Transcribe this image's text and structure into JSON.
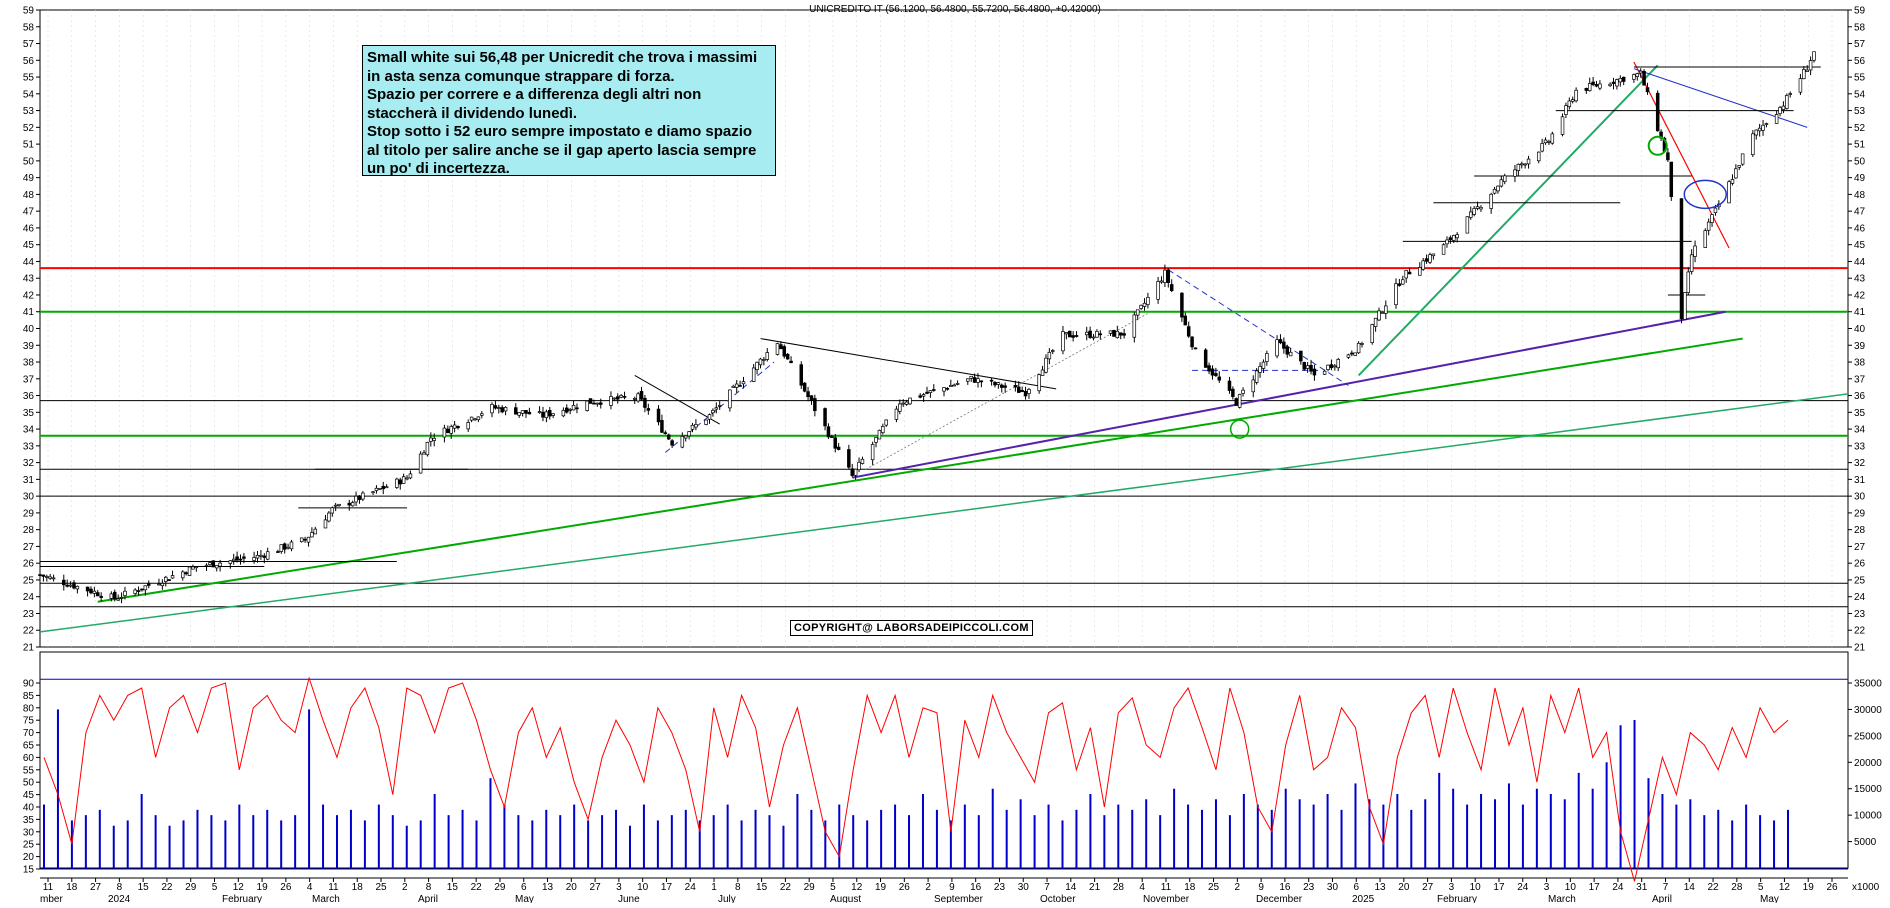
{
  "chart_title": "UNICREDITO IT (56.1200, 56.4800, 55.7200, 56.4800, +0.42000)",
  "annotation_lines": [
    "Small white sui 56,48 per Unicredit che trova i massimi",
    "in asta senza comunque strappare di forza.",
    "Spazio per correre e a differenza degli altri non",
    "staccherà il dividendo lunedì.",
    "Stop sotto i 52 euro sempre impostato e diamo spazio",
    "al titolo per salire anche se il gap aperto lascia sempre",
    "un po' di incertezza."
  ],
  "copyright": "COPYRIGHT@ LABORSADEIPICCOLI.COM",
  "colors": {
    "price": "#000000",
    "oscillator": "#ff0000",
    "volume": "#0000cc",
    "trend_green": "#00aa00",
    "trend_teal": "#22aa66",
    "trend_purple": "#5522aa",
    "resistance_red": "#ff0000",
    "annotation_bg": "#a6ecf0"
  },
  "chart_data": [
    {
      "type": "candlestick",
      "title": "UNICREDITO IT (56.1200, 56.4800, 55.7200, 56.4800, +0.42000)",
      "ylim": [
        21,
        59
      ],
      "y_ticks": [
        21,
        22,
        23,
        24,
        25,
        26,
        27,
        28,
        29,
        30,
        31,
        32,
        33,
        34,
        35,
        36,
        37,
        38,
        39,
        40,
        41,
        42,
        43,
        44,
        45,
        46,
        47,
        48,
        49,
        50,
        51,
        52,
        53,
        54,
        55,
        56,
        57,
        58,
        59
      ],
      "y_tick_labels": [
        "21",
        "22",
        "23",
        "24",
        "25",
        "26",
        "27",
        "28",
        "29",
        "30",
        "31",
        "32",
        "33",
        "34",
        "35",
        "36",
        "37",
        "38",
        "39",
        "40",
        "41",
        "42",
        "43",
        "44",
        "45",
        "46",
        "47",
        "48",
        "49",
        "50",
        "51",
        "52",
        "53",
        "54",
        "55",
        "56",
        "57",
        "58",
        "59"
      ],
      "x_day_labels": [
        "11",
        "18",
        "27",
        "8",
        "15",
        "22",
        "29",
        "5",
        "12",
        "19",
        "26",
        "4",
        "11",
        "18",
        "25",
        "2",
        "8",
        "15",
        "22",
        "29",
        "6",
        "13",
        "20",
        "27",
        "3",
        "10",
        "17",
        "24",
        "1",
        "8",
        "15",
        "22",
        "29",
        "5",
        "12",
        "19",
        "26",
        "2",
        "9",
        "16",
        "23",
        "30",
        "7",
        "14",
        "21",
        "28",
        "4",
        "11",
        "18",
        "25",
        "2",
        "9",
        "16",
        "23",
        "30",
        "6",
        "13",
        "20",
        "27",
        "3",
        "10",
        "17",
        "24",
        "3",
        "10",
        "17",
        "24",
        "31",
        "7",
        "14",
        "22",
        "28",
        "5",
        "12",
        "19",
        "26"
      ],
      "x_month_labels": [
        "mber",
        "2024",
        "February",
        "March",
        "April",
        "May",
        "June",
        "July",
        "August",
        "September",
        "October",
        "November",
        "December",
        "2025",
        "February",
        "March",
        "April",
        "May"
      ],
      "x_range": [
        "2023-12-11",
        "2025-05-26"
      ],
      "price_series": [
        [
          "2023-12-11",
          25.3
        ],
        [
          "2024-01-02",
          23.9
        ],
        [
          "2024-01-26",
          25.8
        ],
        [
          "2024-02-13",
          26.4
        ],
        [
          "2024-02-27",
          27.4
        ],
        [
          "2024-03-06",
          29.2
        ],
        [
          "2024-03-28",
          31.1
        ],
        [
          "2024-04-04",
          33.5
        ],
        [
          "2024-04-22",
          35.3
        ],
        [
          "2024-05-07",
          34.8
        ],
        [
          "2024-05-20",
          35.6
        ],
        [
          "2024-06-04",
          35.9
        ],
        [
          "2024-06-14",
          33.2
        ],
        [
          "2024-06-25",
          34.8
        ],
        [
          "2024-07-15",
          39.2
        ],
        [
          "2024-08-06",
          31.2
        ],
        [
          "2024-08-20",
          35.6
        ],
        [
          "2024-09-10",
          37.0
        ],
        [
          "2024-09-26",
          36.2
        ],
        [
          "2024-10-07",
          39.6
        ],
        [
          "2024-10-25",
          39.7
        ],
        [
          "2024-11-06",
          43.3
        ],
        [
          "2024-11-15",
          38.6
        ],
        [
          "2024-11-27",
          35.6
        ],
        [
          "2024-12-09",
          39.2
        ],
        [
          "2024-12-20",
          37.2
        ],
        [
          "2025-01-02",
          38.9
        ],
        [
          "2025-01-15",
          43.1
        ],
        [
          "2025-01-27",
          44.9
        ],
        [
          "2025-02-13",
          48.8
        ],
        [
          "2025-02-27",
          51.2
        ],
        [
          "2025-03-07",
          54.2
        ],
        [
          "2025-03-26",
          55.2
        ],
        [
          "2025-04-03",
          50.0
        ],
        [
          "2025-04-07",
          40.7
        ],
        [
          "2025-04-10",
          44.4
        ],
        [
          "2025-04-17",
          47.0
        ],
        [
          "2025-04-28",
          51.5
        ],
        [
          "2025-05-07",
          53.4
        ],
        [
          "2025-05-14",
          55.6
        ],
        [
          "2025-05-16",
          56.48
        ]
      ],
      "horizontal_levels": [
        {
          "value": 41.0,
          "color": "#00aa00"
        },
        {
          "value": 33.6,
          "color": "#00aa00"
        },
        {
          "value": 43.6,
          "color": "#ff0000"
        },
        {
          "value": 35.7,
          "color": "#000000"
        },
        {
          "value": 31.6,
          "color": "#000000"
        },
        {
          "value": 30.0,
          "color": "#000000"
        },
        {
          "value": 24.8,
          "color": "#000000"
        },
        {
          "value": 23.4,
          "color": "#000000"
        }
      ]
    },
    {
      "type": "bar+line",
      "y_ticks": [
        15,
        20,
        25,
        30,
        35,
        40,
        45,
        50,
        55,
        60,
        65,
        70,
        75,
        80,
        85,
        90
      ],
      "y_tick_labels": [
        "15",
        "20",
        "25",
        "30",
        "35",
        "40",
        "45",
        "50",
        "55",
        "60",
        "65",
        "70",
        "75",
        "80",
        "85",
        "90"
      ],
      "y2_ticks": [
        5000,
        10000,
        15000,
        20000,
        25000,
        30000,
        35000
      ],
      "y2_tick_labels": [
        "5000",
        "10000",
        "15000",
        "20000",
        "25000",
        "30000",
        "35000"
      ],
      "y2_unit": "x1000",
      "oscillator_levels": [
        91.5,
        15
      ],
      "oscillator_series": [
        60,
        45,
        25,
        70,
        85,
        75,
        85,
        88,
        60,
        80,
        85,
        70,
        88,
        90,
        55,
        80,
        85,
        75,
        70,
        92,
        75,
        60,
        80,
        88,
        72,
        45,
        88,
        85,
        70,
        88,
        90,
        75,
        55,
        40,
        70,
        80,
        60,
        72,
        50,
        35,
        60,
        75,
        65,
        50,
        80,
        70,
        55,
        30,
        80,
        60,
        85,
        72,
        40,
        65,
        80,
        55,
        30,
        20,
        55,
        85,
        70,
        85,
        60,
        80,
        78,
        30,
        75,
        60,
        85,
        70,
        60,
        50,
        78,
        82,
        55,
        72,
        40,
        78,
        84,
        65,
        60,
        80,
        88,
        72,
        55,
        88,
        70,
        40,
        30,
        65,
        85,
        55,
        60,
        80,
        72,
        40,
        25,
        60,
        78,
        85,
        60,
        88,
        70,
        55,
        88,
        65,
        80,
        50,
        85,
        70,
        88,
        60,
        70,
        30,
        10,
        35,
        60,
        45,
        70,
        65,
        55,
        72,
        60,
        80,
        70,
        75
      ],
      "volume_series": [
        12,
        30,
        9,
        10,
        11,
        8,
        9,
        14,
        10,
        8,
        9,
        11,
        10,
        9,
        12,
        10,
        11,
        9,
        10,
        30,
        12,
        10,
        11,
        9,
        12,
        10,
        8,
        9,
        14,
        10,
        11,
        9,
        17,
        12,
        10,
        9,
        11,
        10,
        12,
        9,
        10,
        11,
        8,
        12,
        9,
        10,
        11,
        9,
        10,
        12,
        9,
        11,
        10,
        8,
        14,
        11,
        9,
        12,
        10,
        9,
        11,
        12,
        10,
        14,
        11,
        9,
        12,
        10,
        15,
        11,
        13,
        10,
        12,
        9,
        11,
        14,
        10,
        12,
        11,
        13,
        10,
        15,
        12,
        11,
        13,
        10,
        14,
        12,
        11,
        15,
        13,
        12,
        14,
        11,
        16,
        13,
        12,
        14,
        11,
        13,
        18,
        15,
        12,
        14,
        13,
        16,
        12,
        15,
        14,
        13,
        18,
        15,
        20,
        27,
        28,
        17,
        14,
        12,
        13,
        10,
        11,
        9,
        12,
        10,
        9,
        11
      ]
    }
  ]
}
